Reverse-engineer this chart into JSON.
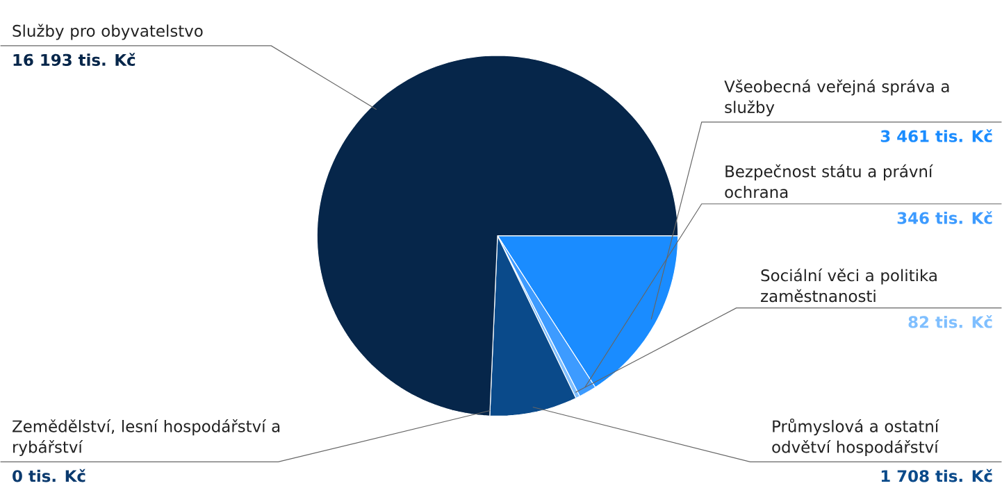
{
  "chart_data": {
    "type": "pie",
    "categories": [
      "Všeobecná veřejná správa a služby",
      "Bezpečnost státu a právní ochrana",
      "Sociální věci a politika zaměstnanosti",
      "Průmyslová a ostatní odvětví hospodářství",
      "Zemědělství, lesní hospodářství a rybářství",
      "Služby pro obyvatelstvo"
    ],
    "values": [
      3461,
      346,
      82,
      1708,
      0,
      16193
    ],
    "value_labels": [
      "3 461 tis. Kč",
      "346 tis. Kč",
      "82 tis. Kč",
      "1 708 tis. Kč",
      "0 tis. Kč",
      "16 193 tis. Kč"
    ],
    "colors": [
      "#1a8cff",
      "#3d9bff",
      "#7fbfff",
      "#0a4a8a",
      "#0b3a6e",
      "#06264a"
    ]
  }
}
